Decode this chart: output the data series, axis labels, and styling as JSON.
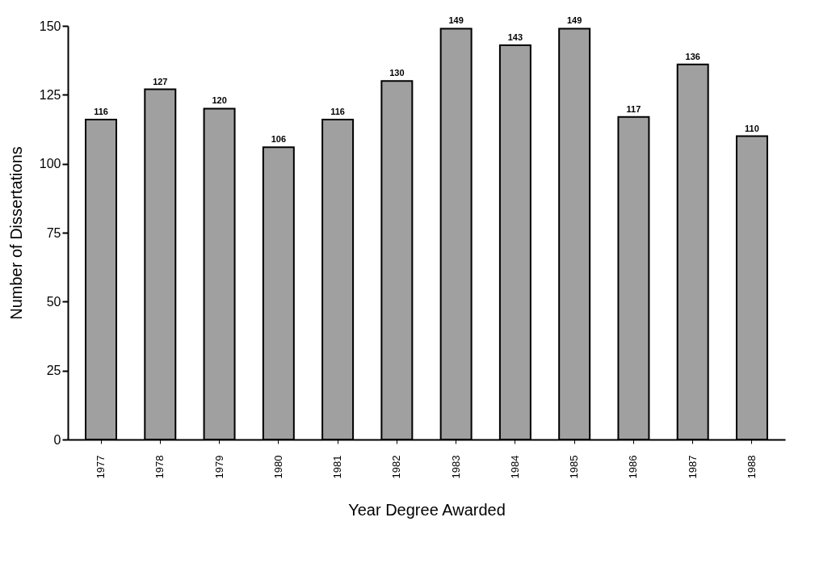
{
  "chart_data": {
    "type": "bar",
    "xlabel": "Year Degree Awarded",
    "ylabel": "Number of Dissertations",
    "categories": [
      "1977",
      "1978",
      "1979",
      "1980",
      "1981",
      "1982",
      "1983",
      "1984",
      "1985",
      "1986",
      "1987",
      "1988"
    ],
    "values": [
      116,
      127,
      120,
      106,
      116,
      130,
      149,
      143,
      149,
      117,
      136,
      110
    ],
    "color": "#a0a0a0",
    "ylim": [
      0,
      150
    ],
    "yticks": [
      0,
      25,
      50,
      75,
      100,
      125,
      150
    ],
    "grid": false,
    "data_labels": true
  }
}
